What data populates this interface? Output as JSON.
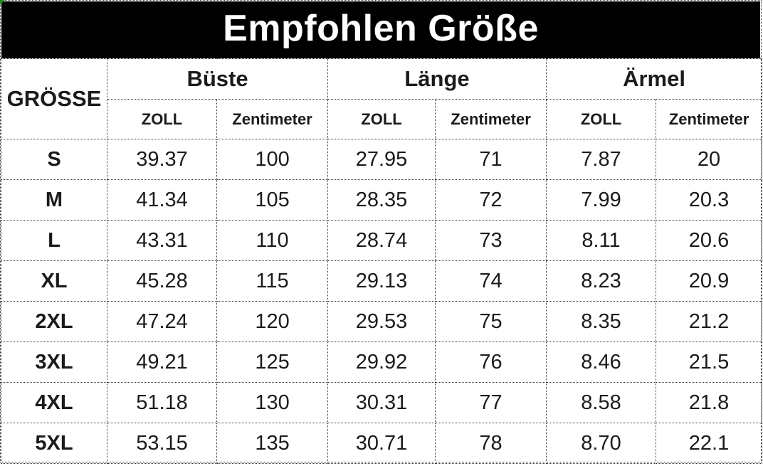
{
  "title": "Empfohlen Größe",
  "chart_data": {
    "type": "table",
    "title": "Empfohlen Größe",
    "size_column_header": "GRÖSSE",
    "column_groups": [
      {
        "label": "Büste",
        "units": [
          "ZOLL",
          "Zentimeter"
        ]
      },
      {
        "label": "Länge",
        "units": [
          "ZOLL",
          "Zentimeter"
        ]
      },
      {
        "label": "Ärmel",
        "units": [
          "ZOLL",
          "Zentimeter"
        ]
      }
    ],
    "rows": [
      {
        "size": "S",
        "values": [
          "39.37",
          "100",
          "27.95",
          "71",
          "7.87",
          "20"
        ]
      },
      {
        "size": "M",
        "values": [
          "41.34",
          "105",
          "28.35",
          "72",
          "7.99",
          "20.3"
        ]
      },
      {
        "size": "L",
        "values": [
          "43.31",
          "110",
          "28.74",
          "73",
          "8.11",
          "20.6"
        ]
      },
      {
        "size": "XL",
        "values": [
          "45.28",
          "115",
          "29.13",
          "74",
          "8.23",
          "20.9"
        ]
      },
      {
        "size": "2XL",
        "values": [
          "47.24",
          "120",
          "29.53",
          "75",
          "8.35",
          "21.2"
        ]
      },
      {
        "size": "3XL",
        "values": [
          "49.21",
          "125",
          "29.92",
          "76",
          "8.46",
          "21.5"
        ]
      },
      {
        "size": "4XL",
        "values": [
          "51.18",
          "130",
          "30.31",
          "77",
          "8.58",
          "21.8"
        ]
      },
      {
        "size": "5XL",
        "values": [
          "53.15",
          "135",
          "30.71",
          "78",
          "8.70",
          "22.1"
        ]
      }
    ]
  },
  "colors": {
    "banner_bg": "#000000",
    "banner_text": "#ffffff",
    "border": "#3c3c3c",
    "text": "#1b1b1b",
    "corner_marker": "#1f8c1f"
  }
}
